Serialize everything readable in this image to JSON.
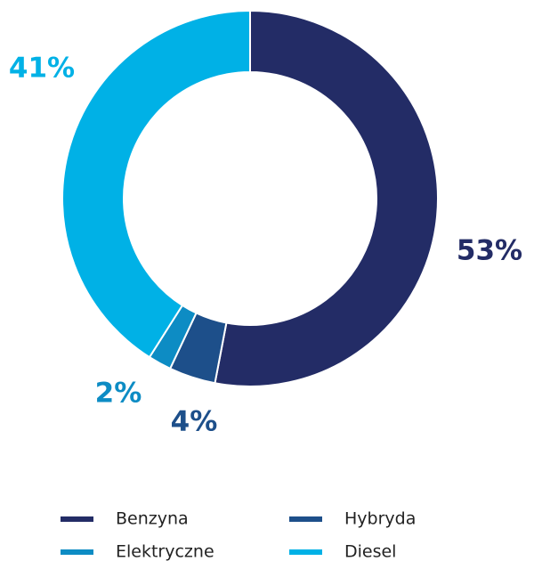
{
  "chart_data": {
    "type": "donut",
    "categories": [
      "Benzyna",
      "Hybryda",
      "Elektryczne",
      "Diesel"
    ],
    "values": [
      53,
      4,
      2,
      41
    ],
    "value_labels": [
      "53%",
      "4%",
      "2%",
      "41%"
    ],
    "colors": [
      "#232c66",
      "#1d4f8a",
      "#0d8cc4",
      "#00b1e6"
    ],
    "legend": "bottom"
  }
}
